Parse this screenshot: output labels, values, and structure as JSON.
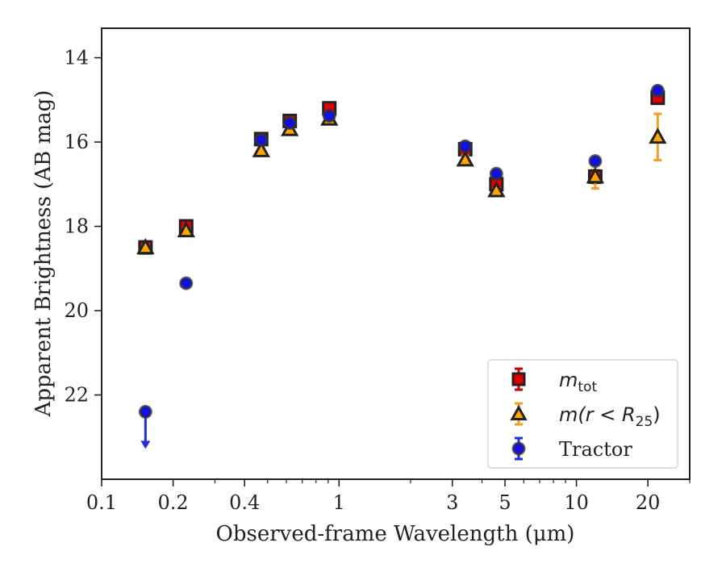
{
  "chart_data": {
    "type": "scatter",
    "title": "",
    "xlabel": "Observed-frame Wavelength (μm)",
    "ylabel": "Apparent Brightness (AB mag)",
    "xscale": "log",
    "xlim": [
      0.1,
      30
    ],
    "ylim": [
      24.0,
      13.3
    ],
    "y_inverted": true,
    "grid": false,
    "legend_position": "lower-right",
    "xticks": [
      {
        "value": 0.1,
        "label": "0.1"
      },
      {
        "value": 0.2,
        "label": "0.2"
      },
      {
        "value": 0.4,
        "label": "0.4"
      },
      {
        "value": 1,
        "label": "1"
      },
      {
        "value": 3,
        "label": "3"
      },
      {
        "value": 5,
        "label": "5"
      },
      {
        "value": 10,
        "label": "10"
      },
      {
        "value": 20,
        "label": "20"
      }
    ],
    "yticks": [
      {
        "value": 14,
        "label": "14"
      },
      {
        "value": 16,
        "label": "16"
      },
      {
        "value": 18,
        "label": "18"
      },
      {
        "value": 20,
        "label": "20"
      },
      {
        "value": 22,
        "label": "22"
      }
    ],
    "series": [
      {
        "name": "m_tot",
        "legend_main": "m",
        "legend_sub": "tot",
        "legend_rest": "",
        "marker": "square",
        "color": "#e50000",
        "errcolor": "#d00000",
        "points": [
          {
            "x": 0.153,
            "y": 18.5,
            "err": 0.05
          },
          {
            "x": 0.227,
            "y": 18.0,
            "err": 0.1
          },
          {
            "x": 0.47,
            "y": 15.93,
            "err": 0.05
          },
          {
            "x": 0.62,
            "y": 15.5,
            "err": 0.05
          },
          {
            "x": 0.91,
            "y": 15.2,
            "err": 0.05
          },
          {
            "x": 3.4,
            "y": 16.17,
            "err": 0.12
          },
          {
            "x": 4.6,
            "y": 17.0,
            "err": 0.1
          },
          {
            "x": 12.0,
            "y": 16.82,
            "err": 0.15
          },
          {
            "x": 22.0,
            "y": 14.95,
            "err": 0.12
          }
        ]
      },
      {
        "name": "m(r < R25)",
        "legend_main": "m(r < R",
        "legend_sub": "25",
        "legend_rest": ")",
        "marker": "triangle",
        "color": "#ffa500",
        "errcolor": "#f0a020",
        "points": [
          {
            "x": 0.153,
            "y": 18.5,
            "err": 0.05
          },
          {
            "x": 0.227,
            "y": 18.1,
            "err": 0.05
          },
          {
            "x": 0.47,
            "y": 16.2,
            "err": 0.05
          },
          {
            "x": 0.62,
            "y": 15.7,
            "err": 0.05
          },
          {
            "x": 0.91,
            "y": 15.45,
            "err": 0.05
          },
          {
            "x": 3.4,
            "y": 16.42,
            "err": 0.1
          },
          {
            "x": 4.6,
            "y": 17.15,
            "err": 0.05
          },
          {
            "x": 12.0,
            "y": 16.82,
            "err": 0.28
          },
          {
            "x": 22.0,
            "y": 15.88,
            "err": 0.55
          }
        ]
      },
      {
        "name": "Tractor",
        "legend_main": "Tractor",
        "legend_sub": "",
        "legend_rest": "",
        "marker": "circle",
        "color": "#1010e0",
        "errcolor": "#2030e0",
        "points": [
          {
            "x": 0.153,
            "y": 22.4,
            "err": 0.0,
            "upper_limit": true
          },
          {
            "x": 0.227,
            "y": 19.35,
            "err": 0.05
          },
          {
            "x": 0.47,
            "y": 15.95,
            "err": 0.05
          },
          {
            "x": 0.62,
            "y": 15.55,
            "err": 0.05
          },
          {
            "x": 0.91,
            "y": 15.38,
            "err": 0.05
          },
          {
            "x": 3.4,
            "y": 16.1,
            "err": 0.05
          },
          {
            "x": 4.6,
            "y": 16.75,
            "err": 0.05
          },
          {
            "x": 12.0,
            "y": 16.45,
            "err": 0.05
          },
          {
            "x": 22.0,
            "y": 14.78,
            "err": 0.05
          }
        ]
      }
    ]
  }
}
